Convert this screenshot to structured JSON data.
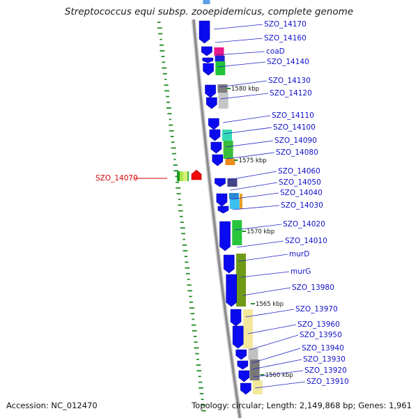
{
  "title": "Streptococcus equi subsp. zooepidemicus, complete genome",
  "footer": {
    "accession": "Accession: NC_012470",
    "summary": "Topology: circular; Length: 2,149,868 bp; Genes: 1,961"
  },
  "colors": {
    "cds": "#0a0af0",
    "label": "#1010c8",
    "highlight_label": "#d40000",
    "backbone": "#8c8c8c",
    "gc_skew_ticks": "#1f8a1f",
    "scale_mark": "#2f8f2f"
  },
  "scale_marks": [
    "1580 kbp",
    "1575 kbp",
    "1570 kbp",
    "1565 kbp",
    "1560 kbp"
  ],
  "highlighted_gene": "SZO_14070",
  "genes": [
    "SZO_14170",
    "SZO_14160",
    "coaD",
    "SZO_14140",
    "SZO_14130",
    "SZO_14120",
    "SZO_14110",
    "SZO_14100",
    "SZO_14090",
    "SZO_14080",
    "SZO_14070",
    "SZO_14060",
    "SZO_14050",
    "SZO_14040",
    "SZO_14030",
    "SZO_14020",
    "SZO_14010",
    "murD",
    "murG",
    "SZO_13980",
    "SZO_13970",
    "SZO_13960",
    "SZO_13950",
    "SZO_13940",
    "SZO_13930",
    "SZO_13920",
    "SZO_13910"
  ]
}
